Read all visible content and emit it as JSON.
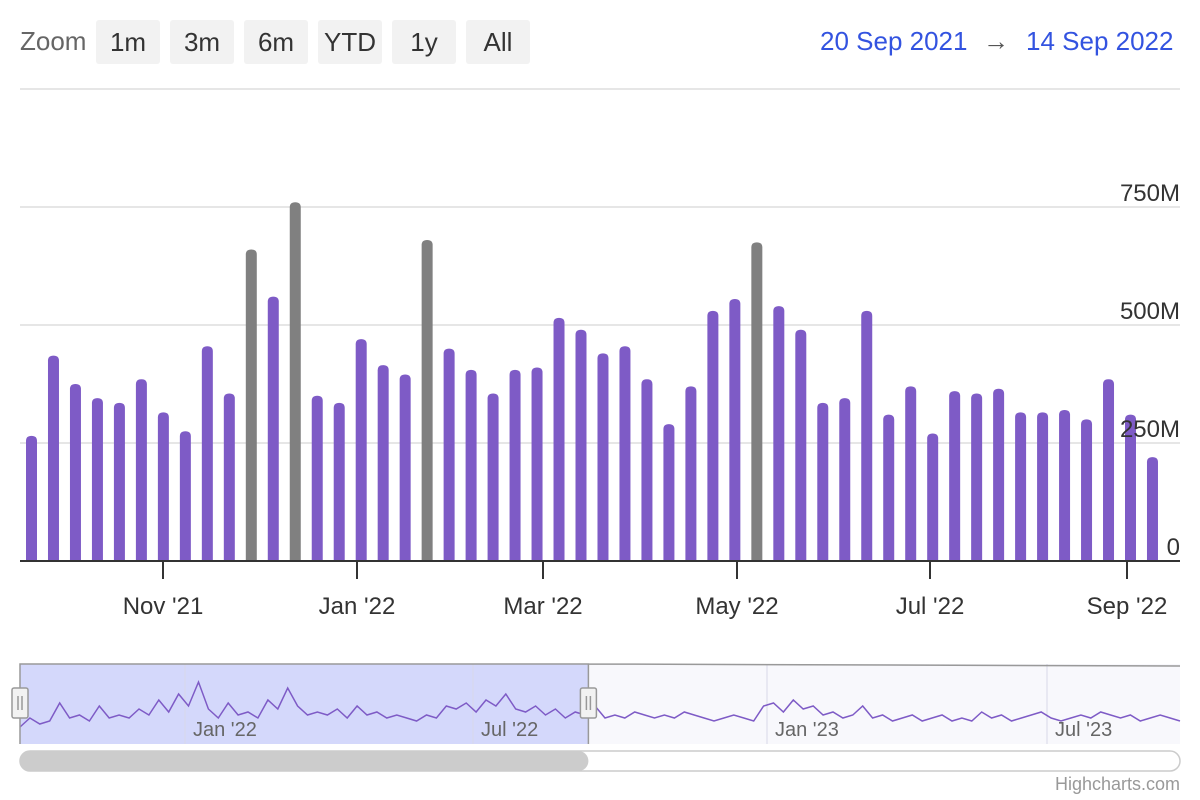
{
  "toolbar": {
    "zoom_label": "Zoom",
    "buttons": [
      "1m",
      "3m",
      "6m",
      "YTD",
      "1y",
      "All"
    ],
    "range_from": "20 Sep 2021",
    "range_arrow": "→",
    "range_to": "14 Sep 2022"
  },
  "chart_data": {
    "type": "bar",
    "ylim": [
      0,
      750000000
    ],
    "y_ticks": [
      0,
      250000000,
      500000000,
      750000000
    ],
    "y_tick_labels": [
      "0",
      "250M",
      "500M",
      "750M"
    ],
    "x_tick_labels": [
      "Nov '21",
      "Jan '22",
      "Mar '22",
      "May '22",
      "Jul '22",
      "Sep '22"
    ],
    "grid": true,
    "colors": {
      "normal": "#7e5bc6",
      "highlight": "#808080"
    },
    "categories": [
      "2021-09-20",
      "2021-09-27",
      "2021-10-04",
      "2021-10-11",
      "2021-10-18",
      "2021-10-25",
      "2021-11-01",
      "2021-11-08",
      "2021-11-15",
      "2021-11-22",
      "2021-11-29",
      "2021-12-06",
      "2021-12-13",
      "2021-12-20",
      "2021-12-27",
      "2022-01-03",
      "2022-01-10",
      "2022-01-17",
      "2022-01-24",
      "2022-01-31",
      "2022-02-07",
      "2022-02-14",
      "2022-02-21",
      "2022-02-28",
      "2022-03-07",
      "2022-03-14",
      "2022-03-21",
      "2022-03-28",
      "2022-04-04",
      "2022-04-11",
      "2022-04-18",
      "2022-04-25",
      "2022-05-02",
      "2022-05-09",
      "2022-05-16",
      "2022-05-23",
      "2022-05-30",
      "2022-06-06",
      "2022-06-13",
      "2022-06-20",
      "2022-06-27",
      "2022-07-04",
      "2022-07-11",
      "2022-07-18",
      "2022-07-25",
      "2022-08-01",
      "2022-08-08",
      "2022-08-15",
      "2022-08-22",
      "2022-08-29",
      "2022-09-05",
      "2022-09-12"
    ],
    "values": [
      265000000,
      435000000,
      375000000,
      345000000,
      335000000,
      385000000,
      315000000,
      275000000,
      455000000,
      355000000,
      660000000,
      560000000,
      760000000,
      350000000,
      335000000,
      470000000,
      415000000,
      395000000,
      680000000,
      450000000,
      405000000,
      355000000,
      405000000,
      410000000,
      515000000,
      490000000,
      440000000,
      455000000,
      385000000,
      290000000,
      370000000,
      530000000,
      555000000,
      675000000,
      540000000,
      490000000,
      335000000,
      345000000,
      530000000,
      310000000,
      370000000,
      270000000,
      360000000,
      355000000,
      365000000,
      315000000,
      315000000,
      320000000,
      300000000,
      385000000,
      310000000,
      220000000
    ],
    "highlighted": [
      false,
      false,
      false,
      false,
      false,
      false,
      false,
      false,
      false,
      false,
      true,
      false,
      true,
      false,
      false,
      false,
      false,
      false,
      true,
      false,
      false,
      false,
      false,
      false,
      false,
      false,
      false,
      false,
      false,
      false,
      false,
      false,
      false,
      true,
      false,
      false,
      false,
      false,
      false,
      false,
      false,
      false,
      false,
      false,
      false,
      false,
      false,
      false,
      false,
      false,
      false,
      false
    ]
  },
  "navigator": {
    "labels": [
      "Jan '22",
      "Jul '22",
      "Jan '23",
      "Jul '23"
    ],
    "series": [
      0.15,
      0.3,
      0.2,
      0.25,
      0.55,
      0.3,
      0.35,
      0.25,
      0.5,
      0.3,
      0.35,
      0.3,
      0.45,
      0.35,
      0.6,
      0.4,
      0.7,
      0.5,
      0.9,
      0.45,
      0.3,
      0.55,
      0.35,
      0.4,
      0.3,
      0.6,
      0.45,
      0.8,
      0.5,
      0.35,
      0.4,
      0.35,
      0.45,
      0.3,
      0.5,
      0.35,
      0.4,
      0.3,
      0.35,
      0.3,
      0.25,
      0.35,
      0.3,
      0.5,
      0.45,
      0.55,
      0.4,
      0.6,
      0.5,
      0.7,
      0.45,
      0.4,
      0.5,
      0.35,
      0.45,
      0.3,
      0.4,
      0.35,
      0.5,
      0.3,
      0.35,
      0.3,
      0.4,
      0.35,
      0.3,
      0.35,
      0.3,
      0.4,
      0.35,
      0.3,
      0.25,
      0.3,
      0.35,
      0.3,
      0.25,
      0.5,
      0.55,
      0.4,
      0.6,
      0.45,
      0.5,
      0.35,
      0.4,
      0.3,
      0.35,
      0.5,
      0.3,
      0.35,
      0.25,
      0.3,
      0.35,
      0.25,
      0.3,
      0.35,
      0.25,
      0.3,
      0.25,
      0.4,
      0.3,
      0.35,
      0.25,
      0.3,
      0.35,
      0.4,
      0.3,
      0.25,
      0.3,
      0.35,
      0.3,
      0.4,
      0.35,
      0.3,
      0.35,
      0.25,
      0.3,
      0.35,
      0.3,
      0.25
    ],
    "selected_fraction": [
      0.0,
      0.49
    ],
    "colors": {
      "line": "#7e5bc6",
      "selection": "#d4d8fb"
    }
  },
  "credit": "Highcharts.com"
}
